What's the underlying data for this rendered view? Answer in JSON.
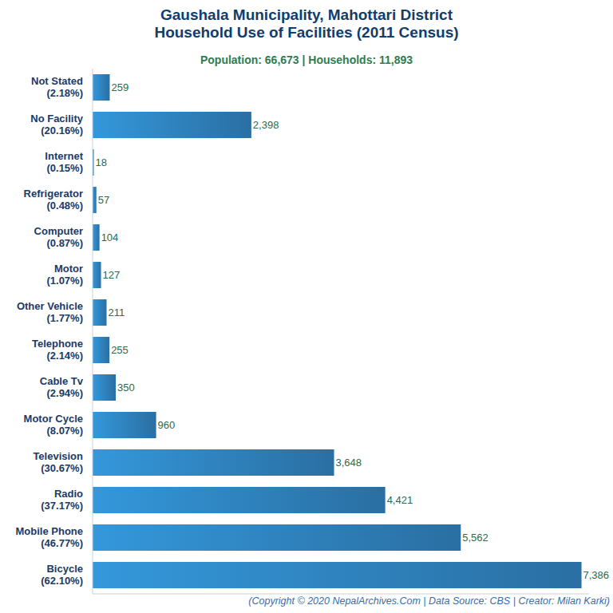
{
  "chart_data": {
    "type": "bar",
    "orientation": "horizontal",
    "title": "Gaushala Municipality, Mahottari District\nHousehold Use of Facilities (2011 Census)",
    "subtitle": "Population: 66,673 | Households: 11,893",
    "caption": "(Copyright © 2020 NepalArchives.Com | Data Source: CBS | Creator: Milan Karki)",
    "categories": [
      "Not Stated\n(2.18%)",
      "No Facility\n(20.16%)",
      "Internet\n(0.15%)",
      "Refrigerator\n(0.48%)",
      "Computer\n(0.87%)",
      "Motor\n(1.07%)",
      "Other Vehicle\n(1.77%)",
      "Telephone\n(2.14%)",
      "Cable Tv\n(2.94%)",
      "Motor Cycle\n(8.07%)",
      "Television\n(30.67%)",
      "Radio\n(37.17%)",
      "Mobile Phone\n(46.77%)",
      "Bicycle\n(62.10%)"
    ],
    "values": [
      259,
      2398,
      18,
      57,
      104,
      127,
      211,
      255,
      350,
      960,
      3648,
      4421,
      5562,
      7386
    ],
    "value_labels": [
      "259",
      "2,398",
      "18",
      "57",
      "104",
      "127",
      "211",
      "255",
      "350",
      "960",
      "3,648",
      "4,421",
      "5,562",
      "7,386"
    ],
    "data_labels": true,
    "color": "#3498db",
    "xlim": [
      0,
      7500
    ],
    "tick_labels": "y",
    "grid": false
  }
}
